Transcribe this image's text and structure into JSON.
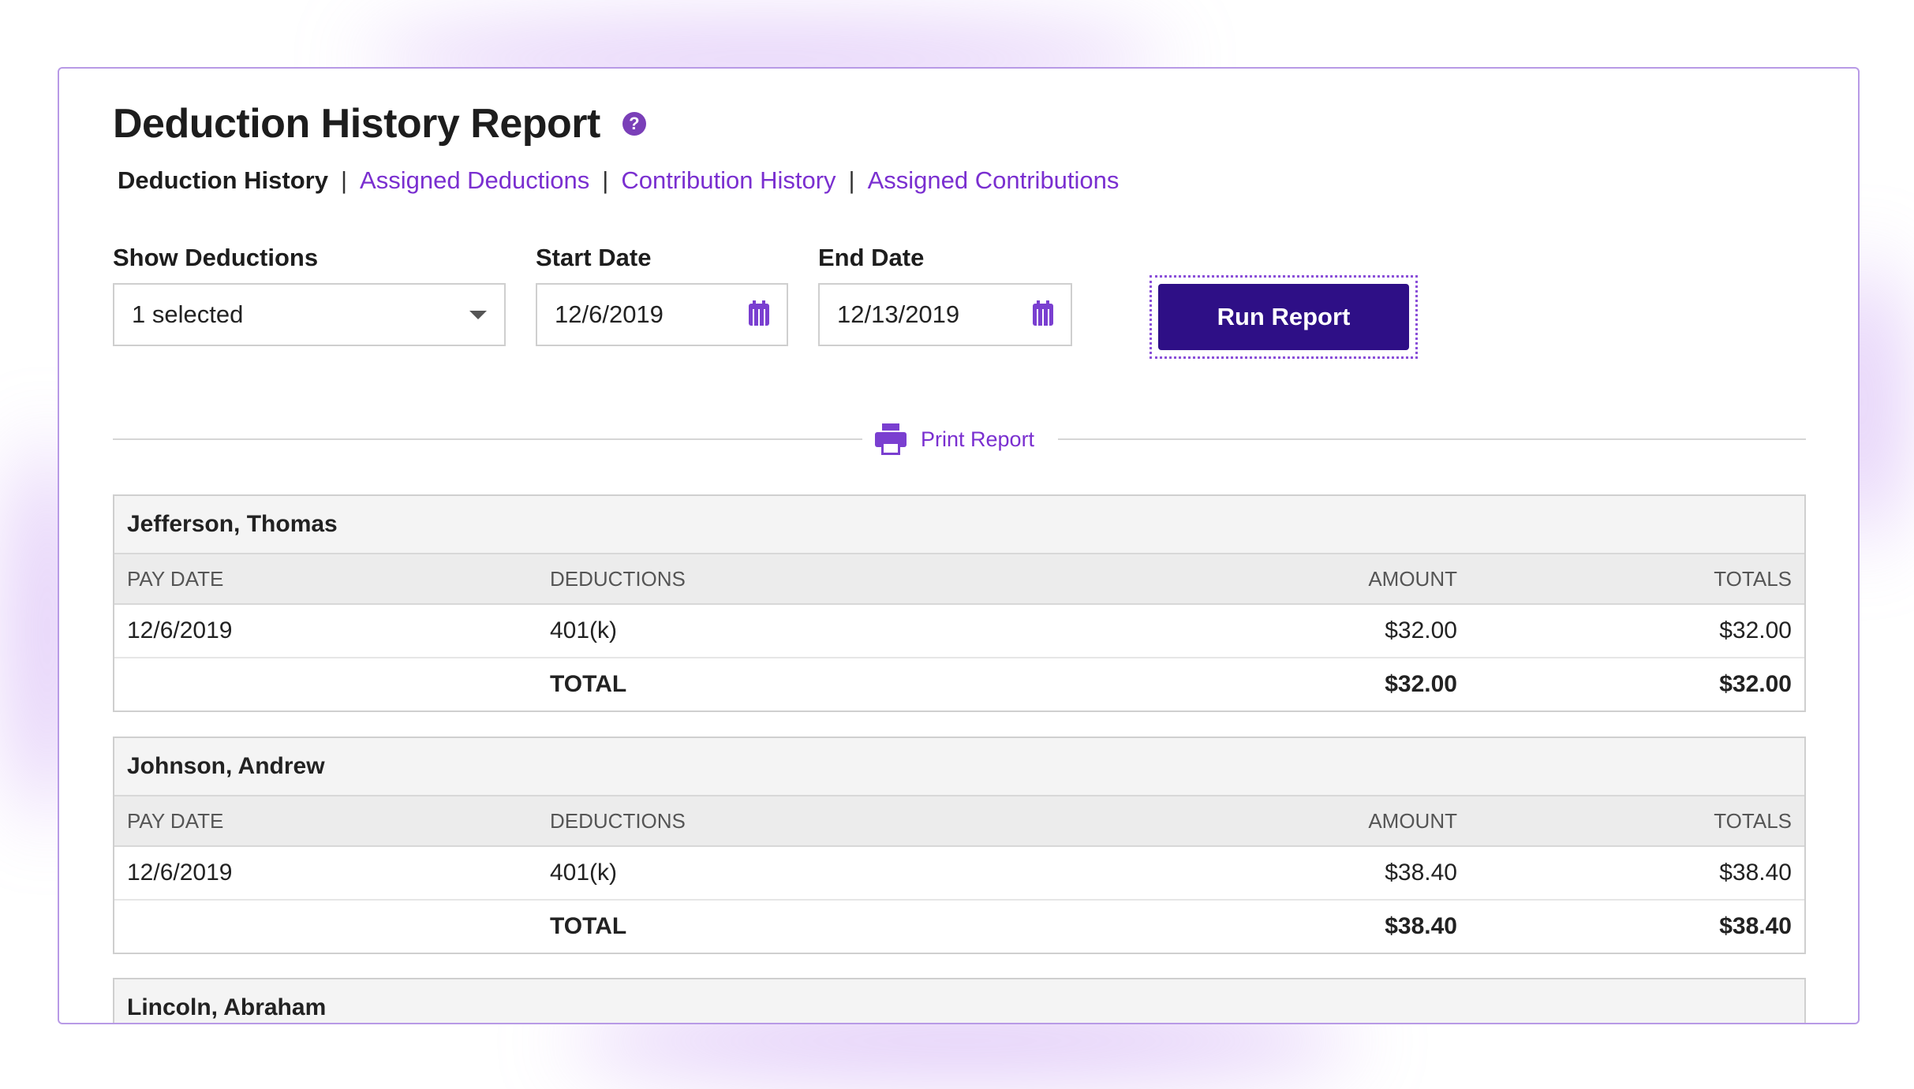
{
  "page": {
    "title": "Deduction History Report",
    "help_icon": "question-circle-icon",
    "help_glyph": "?"
  },
  "tabs": {
    "active": "Deduction History",
    "separator": "|",
    "links": [
      "Assigned Deductions",
      "Contribution History",
      "Assigned Contributions"
    ]
  },
  "filters": {
    "show_deductions": {
      "label": "Show Deductions",
      "value": "1 selected"
    },
    "start_date": {
      "label": "Start Date",
      "value": "12/6/2019"
    },
    "end_date": {
      "label": "End Date",
      "value": "12/13/2019"
    },
    "run_button": "Run Report"
  },
  "print": {
    "label": "Print Report",
    "icon": "printer-icon"
  },
  "table_headers": [
    "PAY DATE",
    "DEDUCTIONS",
    "AMOUNT",
    "TOTALS"
  ],
  "employees": [
    {
      "name": "Jefferson, Thomas",
      "row": {
        "pay_date": "12/6/2019",
        "deduction": "401(k)",
        "amount": "$32.00",
        "totals": "$32.00"
      },
      "total": {
        "label": "TOTAL",
        "amount": "$32.00",
        "totals": "$32.00"
      }
    },
    {
      "name": "Johnson, Andrew",
      "row": {
        "pay_date": "12/6/2019",
        "deduction": "401(k)",
        "amount": "$38.40",
        "totals": "$38.40"
      },
      "total": {
        "label": "TOTAL",
        "amount": "$38.40",
        "totals": "$38.40"
      }
    },
    {
      "name": "Lincoln, Abraham"
    }
  ],
  "colors": {
    "accent": "#7a2fd0",
    "button": "#2e0f86",
    "panel_border": "#b89ae6"
  }
}
